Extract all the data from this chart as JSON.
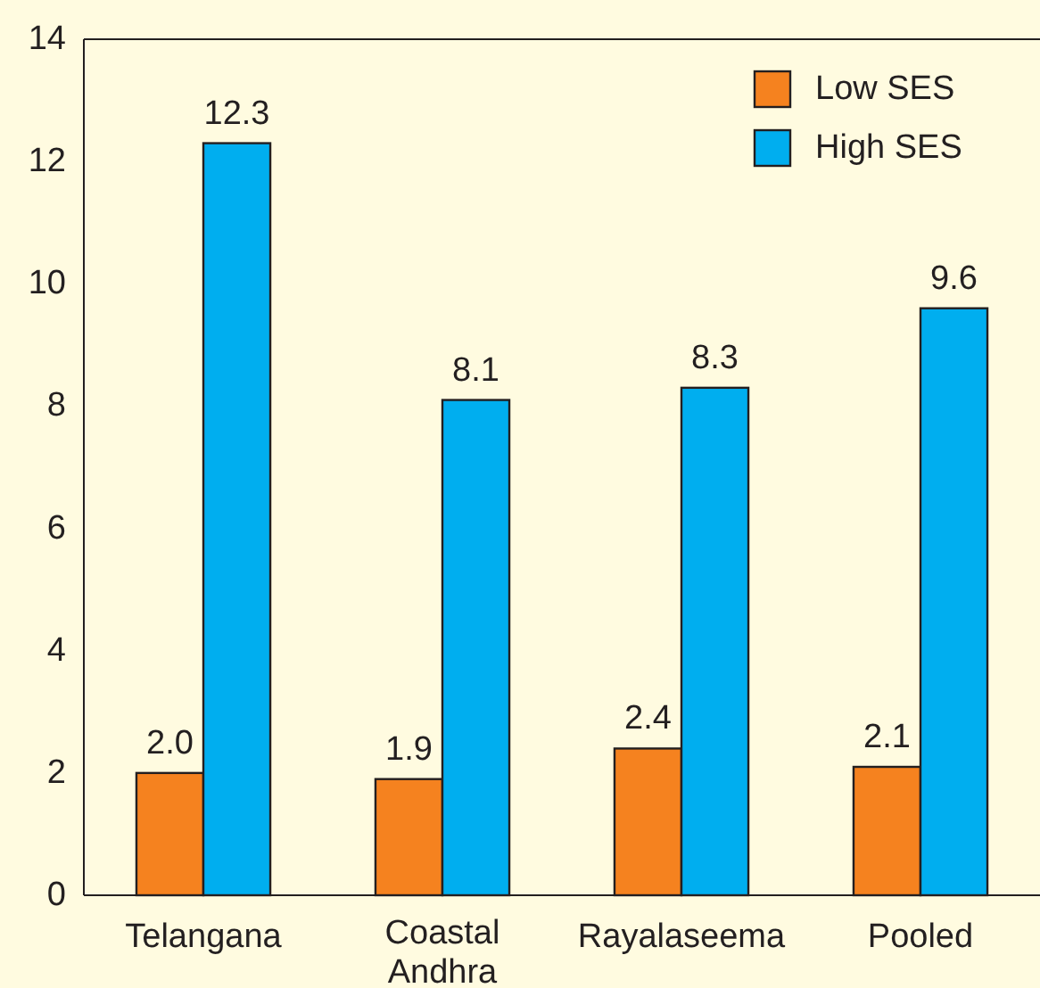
{
  "chart_data": {
    "type": "bar",
    "categories": [
      "Telangana",
      "Coastal Andhra",
      "Rayalaseema",
      "Pooled"
    ],
    "series": [
      {
        "name": "Low SES",
        "color": "#f5821f",
        "values": [
          2.0,
          1.9,
          2.4,
          2.1
        ],
        "value_labels": [
          "2.0",
          "1.9",
          "2.4",
          "2.1"
        ]
      },
      {
        "name": "High SES",
        "color": "#00aeef",
        "values": [
          12.3,
          8.1,
          8.3,
          9.6
        ],
        "value_labels": [
          "12.3",
          "8.1",
          "8.3",
          "9.6"
        ]
      }
    ],
    "ylim": [
      0,
      14
    ],
    "yticks": [
      0,
      2,
      4,
      6,
      8,
      10,
      12,
      14
    ],
    "legend": "top right"
  }
}
